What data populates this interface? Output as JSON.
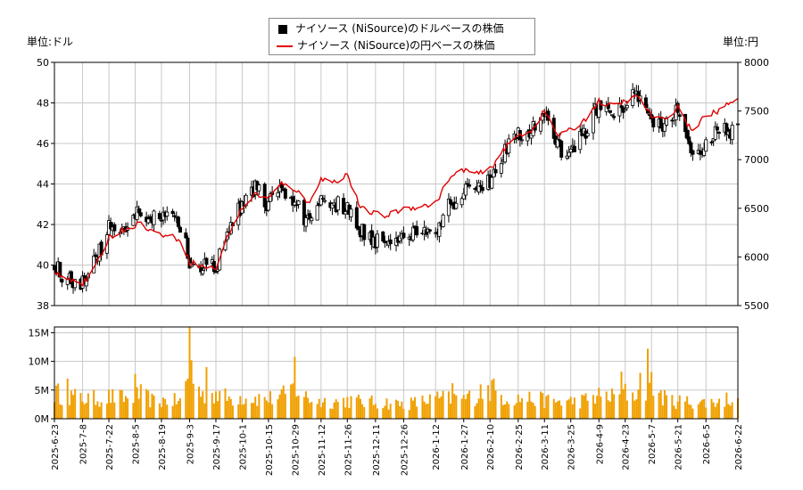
{
  "legend": {
    "usd_label": "ナイソース (NiSource)のドルベースの株価",
    "jpy_label": "ナイソース (NiSource)の円ベースの株価"
  },
  "units": {
    "left": "単位:ドル",
    "right": "単位:円"
  },
  "colors": {
    "candle": "#000000",
    "jpy_line": "#e00000",
    "volume": "#f0a000",
    "grid": "#c8c8c8"
  },
  "chart_data": [
    {
      "type": "candlestick",
      "series": [
        {
          "name": "ナイソース (NiSource)のドルベースの株価",
          "axis": "left",
          "ylim": [
            38,
            50
          ]
        },
        {
          "name": "ナイソース (NiSource)の円ベースの株価",
          "axis": "right",
          "ylim": [
            5500,
            8000
          ]
        }
      ],
      "yticks_left": [
        "38",
        "40",
        "42",
        "44",
        "46",
        "48",
        "50"
      ],
      "yticks_right": [
        "5500",
        "6000",
        "6500",
        "7000",
        "7500",
        "8000"
      ],
      "grid": true,
      "legend_position": "top-center",
      "usd_close_trend": [
        [
          "2025-06-23",
          39.9
        ],
        [
          "2025-07-01",
          39.3
        ],
        [
          "2025-07-08",
          39.2
        ],
        [
          "2025-07-15",
          40.2
        ],
        [
          "2025-07-22",
          41.8
        ],
        [
          "2025-08-01",
          42.0
        ],
        [
          "2025-08-08",
          42.6
        ],
        [
          "2025-08-15",
          42.5
        ],
        [
          "2025-08-22",
          42.2
        ],
        [
          "2025-08-29",
          42.0
        ],
        [
          "2025-09-03",
          40.2
        ],
        [
          "2025-09-10",
          40.0
        ],
        [
          "2025-09-17",
          39.8
        ],
        [
          "2025-09-24",
          41.8
        ],
        [
          "2025-10-01",
          43.0
        ],
        [
          "2025-10-08",
          43.8
        ],
        [
          "2025-10-15",
          43.0
        ],
        [
          "2025-10-22",
          43.6
        ],
        [
          "2025-10-29",
          43.0
        ],
        [
          "2025-11-05",
          42.2
        ],
        [
          "2025-11-12",
          43.4
        ],
        [
          "2025-11-19",
          43.0
        ],
        [
          "2025-11-26",
          42.8
        ],
        [
          "2025-12-03",
          41.8
        ],
        [
          "2025-12-10",
          41.3
        ],
        [
          "2025-12-17",
          41.2
        ],
        [
          "2025-12-26",
          41.5
        ],
        [
          "2026-01-05",
          41.7
        ],
        [
          "2026-01-12",
          41.8
        ],
        [
          "2026-01-19",
          43.0
        ],
        [
          "2026-01-27",
          43.6
        ],
        [
          "2026-02-03",
          44.0
        ],
        [
          "2026-02-10",
          44.0
        ],
        [
          "2026-02-17",
          45.6
        ],
        [
          "2026-02-25",
          46.4
        ],
        [
          "2026-03-04",
          46.6
        ],
        [
          "2026-03-11",
          47.4
        ],
        [
          "2026-03-18",
          45.8
        ],
        [
          "2026-03-25",
          45.6
        ],
        [
          "2026-04-01",
          46.5
        ],
        [
          "2026-04-09",
          48.0
        ],
        [
          "2026-04-16",
          47.2
        ],
        [
          "2026-04-23",
          48.0
        ],
        [
          "2026-04-30",
          48.5
        ],
        [
          "2026-05-07",
          47.0
        ],
        [
          "2026-05-14",
          46.8
        ],
        [
          "2026-05-21",
          47.6
        ],
        [
          "2026-05-28",
          45.6
        ],
        [
          "2026-06-05",
          46.0
        ],
        [
          "2026-06-12",
          46.6
        ],
        [
          "2026-06-22",
          46.7
        ]
      ],
      "jpy_trend": [
        [
          "2025-06-23",
          5850
        ],
        [
          "2025-07-01",
          5780
        ],
        [
          "2025-07-08",
          5720
        ],
        [
          "2025-07-15",
          5900
        ],
        [
          "2025-07-22",
          6200
        ],
        [
          "2025-08-01",
          6300
        ],
        [
          "2025-08-08",
          6350
        ],
        [
          "2025-08-15",
          6250
        ],
        [
          "2025-08-22",
          6220
        ],
        [
          "2025-08-29",
          6180
        ],
        [
          "2025-09-03",
          5950
        ],
        [
          "2025-09-10",
          5900
        ],
        [
          "2025-09-17",
          5880
        ],
        [
          "2025-09-24",
          6250
        ],
        [
          "2025-10-01",
          6500
        ],
        [
          "2025-10-08",
          6650
        ],
        [
          "2025-10-15",
          6600
        ],
        [
          "2025-10-22",
          6750
        ],
        [
          "2025-10-29",
          6700
        ],
        [
          "2025-11-05",
          6550
        ],
        [
          "2025-11-12",
          6800
        ],
        [
          "2025-11-19",
          6770
        ],
        [
          "2025-11-26",
          6850
        ],
        [
          "2025-12-03",
          6500
        ],
        [
          "2025-12-10",
          6450
        ],
        [
          "2025-12-17",
          6420
        ],
        [
          "2025-12-26",
          6500
        ],
        [
          "2026-01-05",
          6520
        ],
        [
          "2026-01-12",
          6550
        ],
        [
          "2026-01-19",
          6800
        ],
        [
          "2026-01-27",
          6900
        ],
        [
          "2026-02-03",
          6850
        ],
        [
          "2026-02-10",
          6900
        ],
        [
          "2026-02-17",
          7100
        ],
        [
          "2026-02-25",
          7250
        ],
        [
          "2026-03-04",
          7300
        ],
        [
          "2026-03-11",
          7500
        ],
        [
          "2026-03-18",
          7250
        ],
        [
          "2026-03-25",
          7300
        ],
        [
          "2026-04-01",
          7400
        ],
        [
          "2026-04-09",
          7600
        ],
        [
          "2026-04-16",
          7550
        ],
        [
          "2026-04-23",
          7600
        ],
        [
          "2026-04-30",
          7650
        ],
        [
          "2026-05-07",
          7450
        ],
        [
          "2026-05-14",
          7400
        ],
        [
          "2026-05-21",
          7550
        ],
        [
          "2026-05-28",
          7300
        ],
        [
          "2026-06-05",
          7450
        ],
        [
          "2026-06-12",
          7500
        ],
        [
          "2026-06-22",
          7650
        ]
      ]
    },
    {
      "type": "bar",
      "series": [
        {
          "axis": "left"
        }
      ],
      "yticks": [
        "0M",
        "5M",
        "10M",
        "15M"
      ],
      "ylim": [
        0,
        16
      ],
      "grid": true,
      "volume_trend_millions": [
        [
          "2025-06-23",
          4.5
        ],
        [
          "2025-07-01",
          4.0
        ],
        [
          "2025-07-08",
          3.5
        ],
        [
          "2025-07-15",
          3.5
        ],
        [
          "2025-07-22",
          3.8
        ],
        [
          "2025-08-01",
          3.5
        ],
        [
          "2025-08-08",
          4.2
        ],
        [
          "2025-08-15",
          3.0
        ],
        [
          "2025-08-22",
          3.2
        ],
        [
          "2025-08-29",
          3.0
        ],
        [
          "2025-09-03",
          8.0
        ],
        [
          "2025-09-10",
          4.0
        ],
        [
          "2025-09-17",
          4.5
        ],
        [
          "2025-09-24",
          3.5
        ],
        [
          "2025-10-01",
          3.8
        ],
        [
          "2025-10-08",
          3.6
        ],
        [
          "2025-10-15",
          3.5
        ],
        [
          "2025-10-22",
          3.8
        ],
        [
          "2025-10-29",
          5.5
        ],
        [
          "2025-11-05",
          3.5
        ],
        [
          "2025-11-12",
          3.0
        ],
        [
          "2025-11-19",
          3.0
        ],
        [
          "2025-11-26",
          3.2
        ],
        [
          "2025-12-03",
          3.0
        ],
        [
          "2025-12-10",
          2.8
        ],
        [
          "2025-12-17",
          2.8
        ],
        [
          "2025-12-26",
          2.5
        ],
        [
          "2026-01-05",
          3.0
        ],
        [
          "2026-01-12",
          3.5
        ],
        [
          "2026-01-19",
          3.5
        ],
        [
          "2026-01-27",
          3.5
        ],
        [
          "2026-02-03",
          4.0
        ],
        [
          "2026-02-10",
          5.0
        ],
        [
          "2026-02-17",
          3.8
        ],
        [
          "2026-02-25",
          3.5
        ],
        [
          "2026-03-04",
          3.5
        ],
        [
          "2026-03-11",
          3.2
        ],
        [
          "2026-03-18",
          3.0
        ],
        [
          "2026-03-25",
          3.0
        ],
        [
          "2026-04-01",
          3.2
        ],
        [
          "2026-04-09",
          4.0
        ],
        [
          "2026-04-16",
          3.8
        ],
        [
          "2026-04-23",
          4.5
        ],
        [
          "2026-04-30",
          4.2
        ],
        [
          "2026-05-07",
          6.0
        ],
        [
          "2026-05-14",
          3.5
        ],
        [
          "2026-05-21",
          3.0
        ],
        [
          "2026-05-28",
          3.0
        ],
        [
          "2026-06-05",
          2.8
        ],
        [
          "2026-06-12",
          3.0
        ],
        [
          "2026-06-22",
          4.0
        ]
      ],
      "volume_spikes_millions": [
        [
          "2025-09-03",
          16.0
        ],
        [
          "2025-09-04",
          10.2
        ],
        [
          "2025-10-29",
          10.8
        ],
        [
          "2025-09-12",
          9.0
        ],
        [
          "2026-04-21",
          8.2
        ],
        [
          "2026-05-05",
          12.2
        ],
        [
          "2026-05-01",
          8.0
        ],
        [
          "2025-08-05",
          7.8
        ],
        [
          "2025-06-30",
          7.0
        ],
        [
          "2026-02-12",
          7.0
        ],
        [
          "2026-01-21",
          6.2
        ],
        [
          "2026-02-05",
          6.0
        ]
      ]
    }
  ],
  "x_ticks": [
    "2025-6-23",
    "2025-7-8",
    "2025-7-22",
    "2025-8-5",
    "2025-8-19",
    "2025-9-3",
    "2025-9-17",
    "2025-10-1",
    "2025-10-15",
    "2025-10-29",
    "2025-11-12",
    "2025-11-26",
    "2025-12-11",
    "2025-12-26",
    "2026-1-12",
    "2026-1-27",
    "2026-2-10",
    "2026-2-25",
    "2026-3-11",
    "2026-3-25",
    "2026-4-9",
    "2026-4-23",
    "2026-5-7",
    "2026-5-21",
    "2026-6-5",
    "2026-6-22"
  ],
  "x_start": "2025-06-23",
  "x_end": "2026-06-22"
}
